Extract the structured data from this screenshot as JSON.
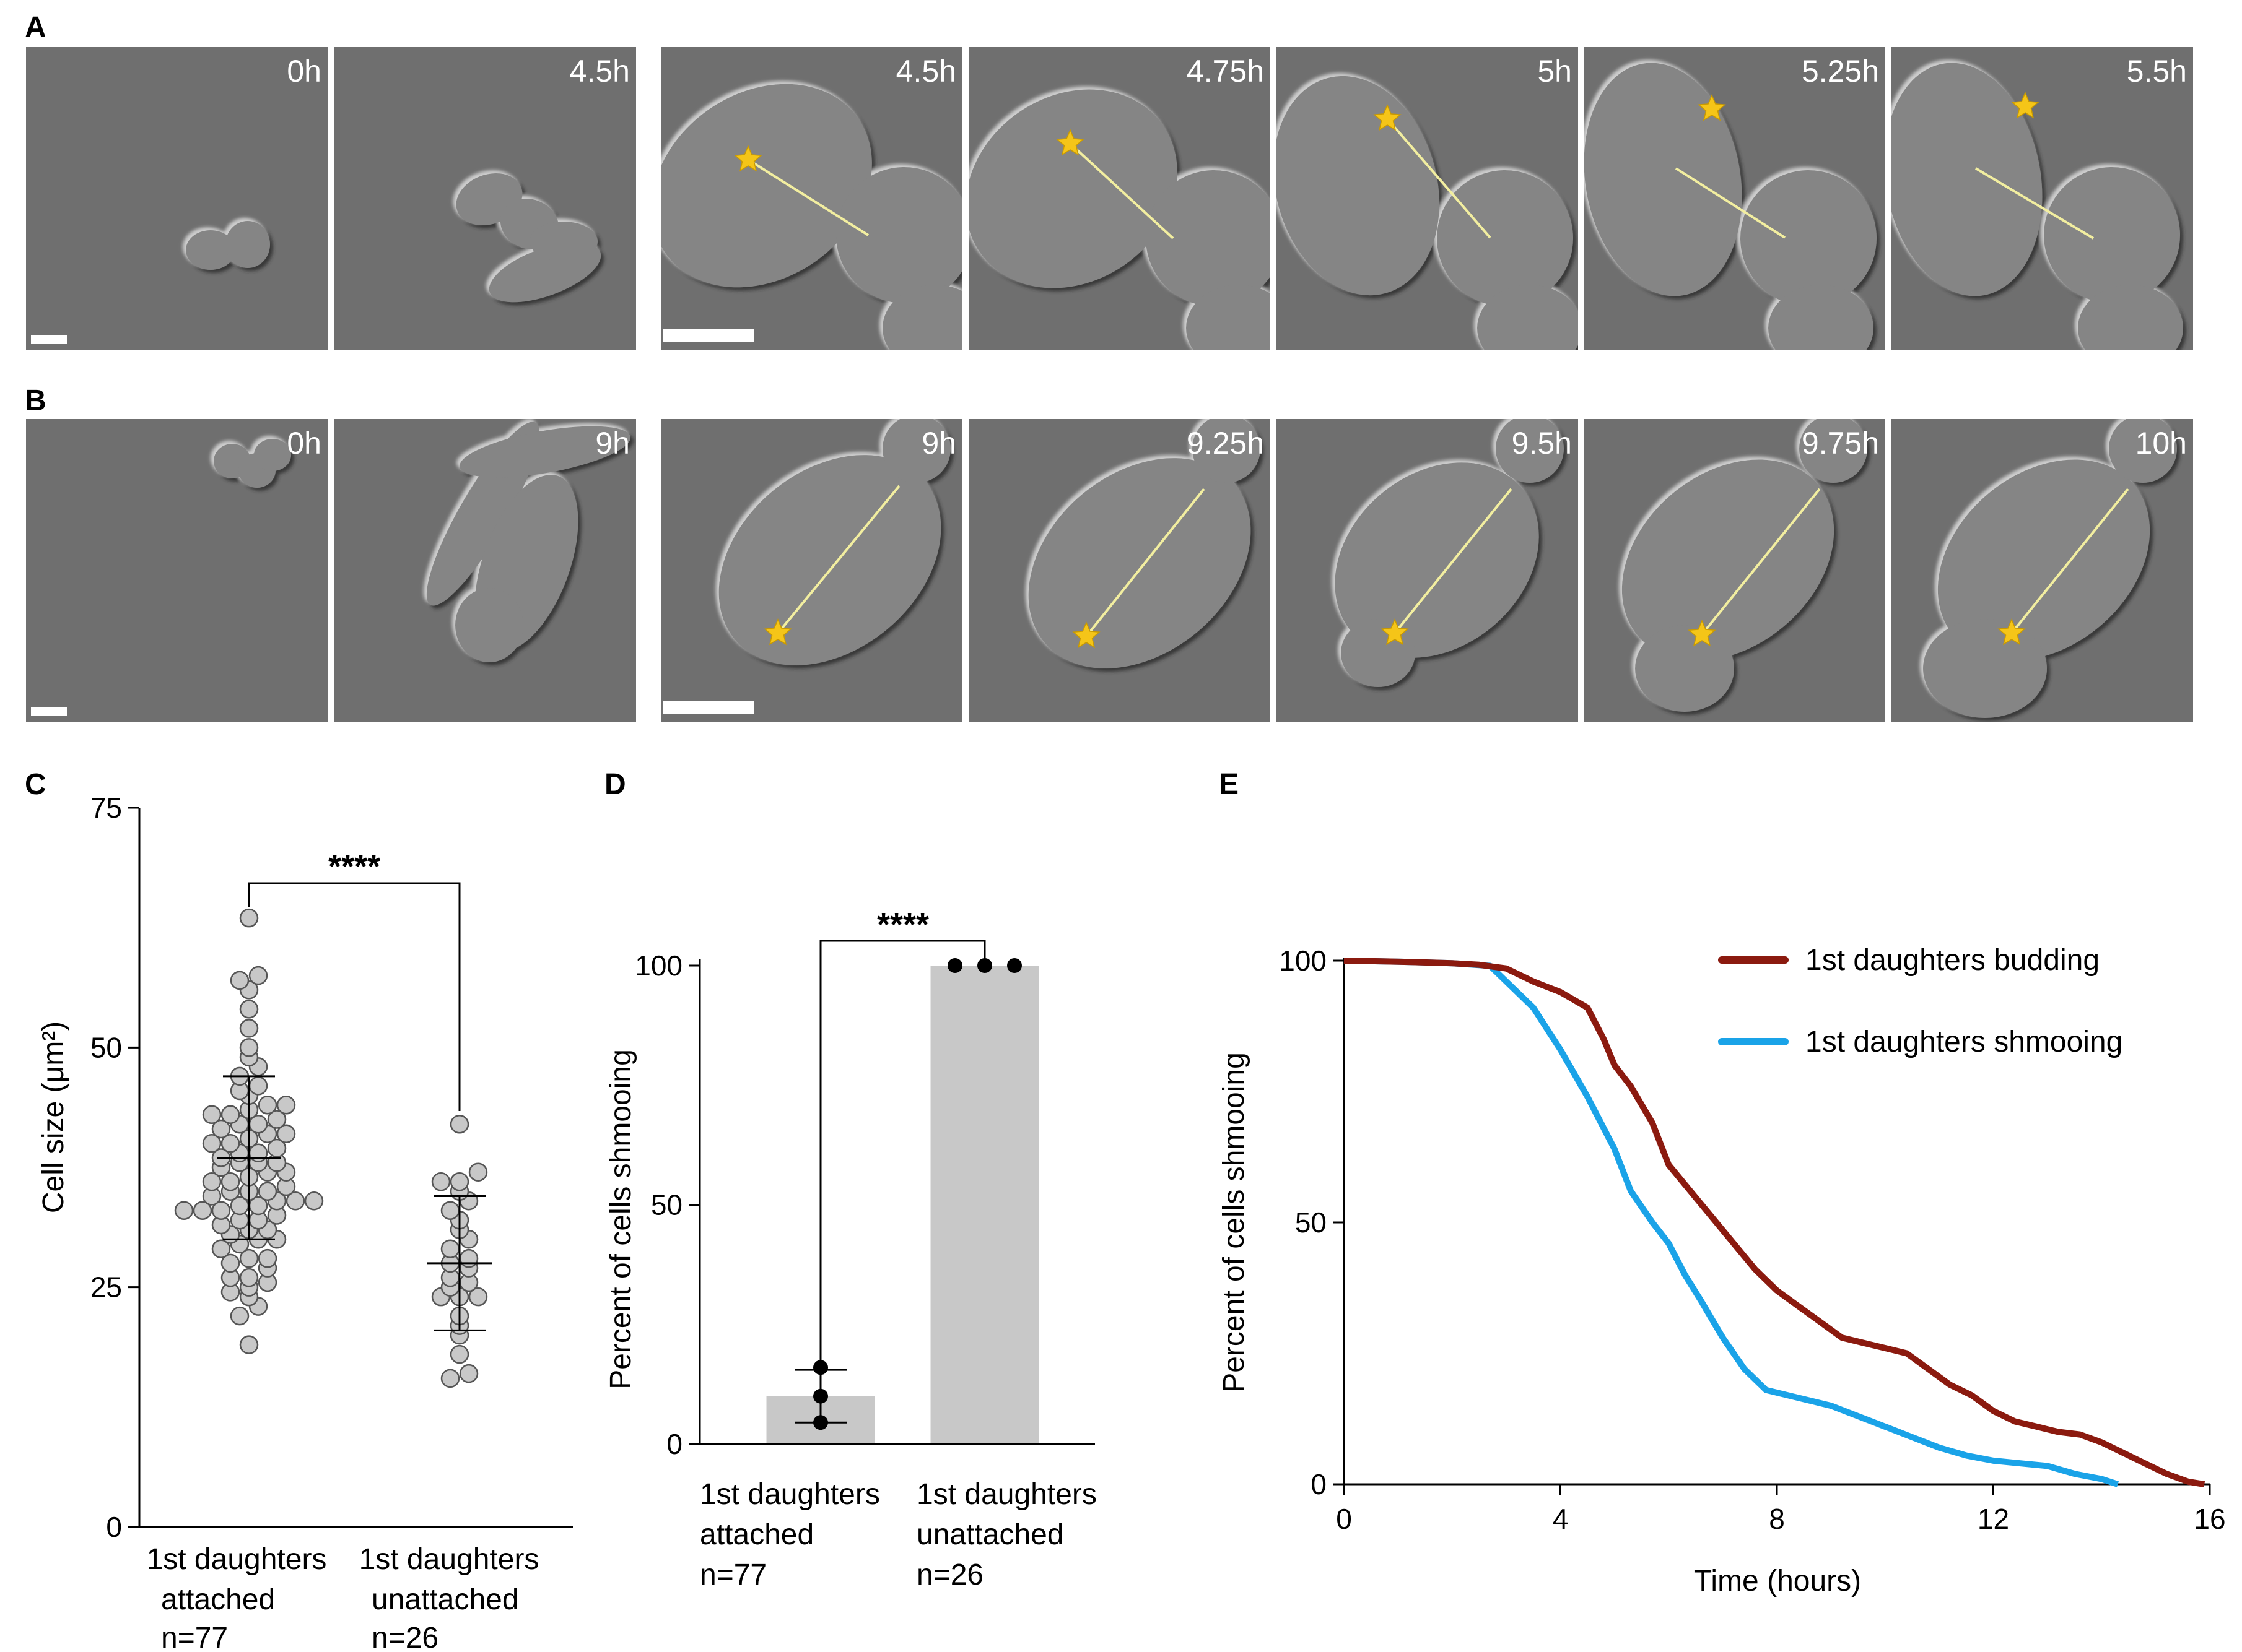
{
  "panels": {
    "A": {
      "label": "A",
      "timestamps": [
        "0h",
        "4.5h",
        "4.5h",
        "4.75h",
        "5h",
        "5.25h",
        "5.5h"
      ]
    },
    "B": {
      "label": "B",
      "timestamps": [
        "0h",
        "9h",
        "9h",
        "9.25h",
        "9.5h",
        "9.75h",
        "10h"
      ]
    },
    "C": {
      "label": "C"
    },
    "D": {
      "label": "D"
    },
    "E": {
      "label": "E"
    }
  },
  "colors": {
    "micrograph_bg": "#6f6f6f",
    "star": "#f5c518",
    "axis_line": "#f2eea0",
    "dot_fill": "#c8c8c8",
    "bar_fill": "#c8c8c8",
    "budding": "#8b1a0f",
    "shmooing": "#1aa3e8"
  },
  "chart_data": [
    {
      "panel": "C",
      "type": "scatter",
      "ylabel": "Cell size (μm²)",
      "ylim": [
        0,
        75
      ],
      "yticks": [
        "0",
        "25",
        "50",
        "75"
      ],
      "categories": [
        {
          "line1": "1st daughters",
          "line2": "attached",
          "line3": "n=77"
        },
        {
          "line1": "1st daughters",
          "line2": "unattached",
          "line3": "n=26"
        }
      ],
      "significance": "****",
      "series": [
        {
          "values": [
            19,
            22,
            23,
            24,
            24.5,
            25,
            25.5,
            26,
            26,
            27,
            27.5,
            28,
            28,
            29,
            29.5,
            30,
            30,
            30.5,
            31,
            31,
            31.5,
            32,
            32,
            32.5,
            33,
            33,
            33,
            33.5,
            33.5,
            34,
            34,
            34,
            34.5,
            35,
            35,
            35,
            35.5,
            36,
            36,
            36.5,
            37,
            37,
            37.5,
            38,
            38,
            38,
            38.5,
            39,
            39,
            39.5,
            40,
            40,
            40.5,
            41,
            41,
            41.5,
            42,
            42,
            42.5,
            43,
            43,
            43.5,
            44,
            44,
            45,
            45.5,
            46,
            47,
            48,
            49,
            50,
            52,
            54,
            56,
            57,
            57.5,
            63.5
          ],
          "mean": 38.5,
          "sd_low": 30,
          "sd_high": 47
        },
        {
          "values": [
            15.5,
            16,
            18,
            20,
            21,
            22,
            24,
            24,
            24,
            25,
            25.5,
            26,
            27,
            27.5,
            28,
            29,
            30,
            31,
            32,
            33,
            34,
            35,
            36,
            36,
            37,
            42
          ],
          "mean": 27.5,
          "sd_low": 20.5,
          "sd_high": 34.5
        }
      ]
    },
    {
      "panel": "D",
      "type": "bar",
      "ylabel": "Percent of cells shmooing",
      "ylim": [
        0,
        100
      ],
      "yticks": [
        "0",
        "50",
        "100"
      ],
      "categories": [
        {
          "line1": "1st daughters",
          "line2": "attached",
          "line3": "n=77"
        },
        {
          "line1": "1st daughters",
          "line2": "unattached",
          "line3": "n=26"
        }
      ],
      "values": [
        10,
        100
      ],
      "points": [
        [
          4.5,
          10,
          16
        ],
        [
          100,
          100,
          100
        ]
      ],
      "error": [
        [
          4.5,
          15.5
        ],
        [
          100,
          100
        ]
      ],
      "significance": "****"
    },
    {
      "panel": "E",
      "type": "line",
      "xlabel": "Time (hours)",
      "ylabel": "Percent of cells shmooing",
      "xlim": [
        0,
        16
      ],
      "ylim": [
        0,
        100
      ],
      "xticks": [
        "0",
        "4",
        "8",
        "12",
        "16"
      ],
      "yticks": [
        "0",
        "50",
        "100"
      ],
      "legend_position": "top-right",
      "series": [
        {
          "name": "1st daughters budding",
          "x": [
            0,
            1,
            2,
            2.5,
            3,
            3.5,
            4,
            4.5,
            4.8,
            5.0,
            5.3,
            5.7,
            6.0,
            6.4,
            6.8,
            7.2,
            7.6,
            8.0,
            8.4,
            8.8,
            9.2,
            9.6,
            10.0,
            10.4,
            10.8,
            11.2,
            11.6,
            12.0,
            12.4,
            12.8,
            13.2,
            13.6,
            14.0,
            14.4,
            14.8,
            15.2,
            15.6,
            15.9
          ],
          "y": [
            100,
            99.8,
            99.5,
            99.2,
            98.5,
            96,
            94,
            91,
            85,
            80,
            76,
            69,
            61,
            56,
            51,
            46,
            41,
            37,
            34,
            31,
            28,
            27,
            26,
            25,
            22,
            19,
            17,
            14,
            12,
            11,
            10,
            9.5,
            8,
            6,
            4,
            2,
            0.5,
            0
          ]
        },
        {
          "name": "1st daughters shmooing",
          "x": [
            0,
            1,
            2,
            2.7,
            3.0,
            3.5,
            4.0,
            4.5,
            5.0,
            5.3,
            5.7,
            6.0,
            6.3,
            6.6,
            7.0,
            7.4,
            7.8,
            8.2,
            8.6,
            9.0,
            9.5,
            10.0,
            10.5,
            11.0,
            11.5,
            12.0,
            12.5,
            13.0,
            13.5,
            14.0,
            14.3
          ],
          "y": [
            100,
            99.8,
            99.5,
            99,
            96,
            91,
            83,
            74,
            64,
            56,
            50,
            46,
            40,
            35,
            28,
            22,
            18,
            17,
            16,
            15,
            13,
            11,
            9,
            7,
            5.5,
            4.5,
            4,
            3.5,
            2,
            1,
            0
          ]
        }
      ]
    }
  ]
}
